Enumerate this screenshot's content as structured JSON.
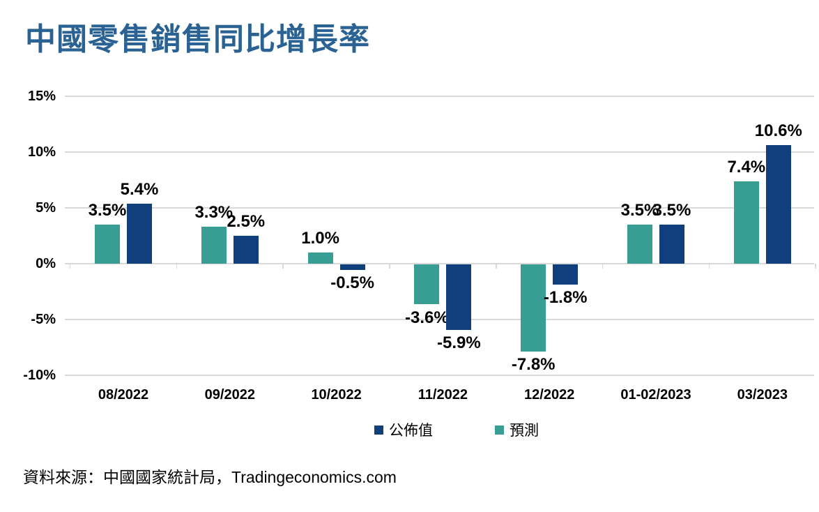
{
  "title": "中國零售銷售同比增長率",
  "source_note": "資料來源：中國國家統計局，Tradingeconomics.com",
  "colors": {
    "title": "#2A6293",
    "actual": "#113E7C",
    "forecast": "#389E94",
    "gridline": "#D9D9D9",
    "text": "#000000",
    "background": "#FFFFFF"
  },
  "legend": [
    {
      "label": "公佈值",
      "series": "actual",
      "color": "#113E7C"
    },
    {
      "label": "預測",
      "series": "forecast",
      "color": "#389E94"
    }
  ],
  "chart_data": {
    "type": "bar",
    "title": "中國零售銷售同比增長率",
    "categories": [
      "08/2022",
      "09/2022",
      "10/2022",
      "11/2022",
      "12/2022",
      "01-02/2023",
      "03/2023"
    ],
    "series": [
      {
        "name": "預測",
        "role": "forecast",
        "color": "#389E94",
        "values": [
          3.5,
          3.3,
          1.0,
          -3.6,
          -7.8,
          3.5,
          7.4
        ],
        "labels": [
          "3.5%",
          "3.3%",
          "1.0%",
          "-3.6%",
          "-7.8%",
          "3.5%",
          "7.4%"
        ]
      },
      {
        "name": "公佈值",
        "role": "actual",
        "color": "#113E7C",
        "values": [
          5.4,
          2.5,
          -0.5,
          -5.9,
          -1.8,
          3.5,
          10.6
        ],
        "labels": [
          "5.4%",
          "2.5%",
          "-0.5%",
          "-5.9%",
          "-1.8%",
          "3.5%",
          "10.6%"
        ]
      }
    ],
    "value_suffix": "%",
    "y_ticks": [
      "15%",
      "10%",
      "5%",
      "0%",
      "-5%",
      "-10%"
    ],
    "y_tick_values": [
      15,
      10,
      5,
      0,
      -5,
      -10
    ],
    "ylim": [
      -10,
      15
    ],
    "grid": true,
    "legend_position": "bottom",
    "bar_order_in_group": [
      "forecast",
      "actual"
    ]
  }
}
